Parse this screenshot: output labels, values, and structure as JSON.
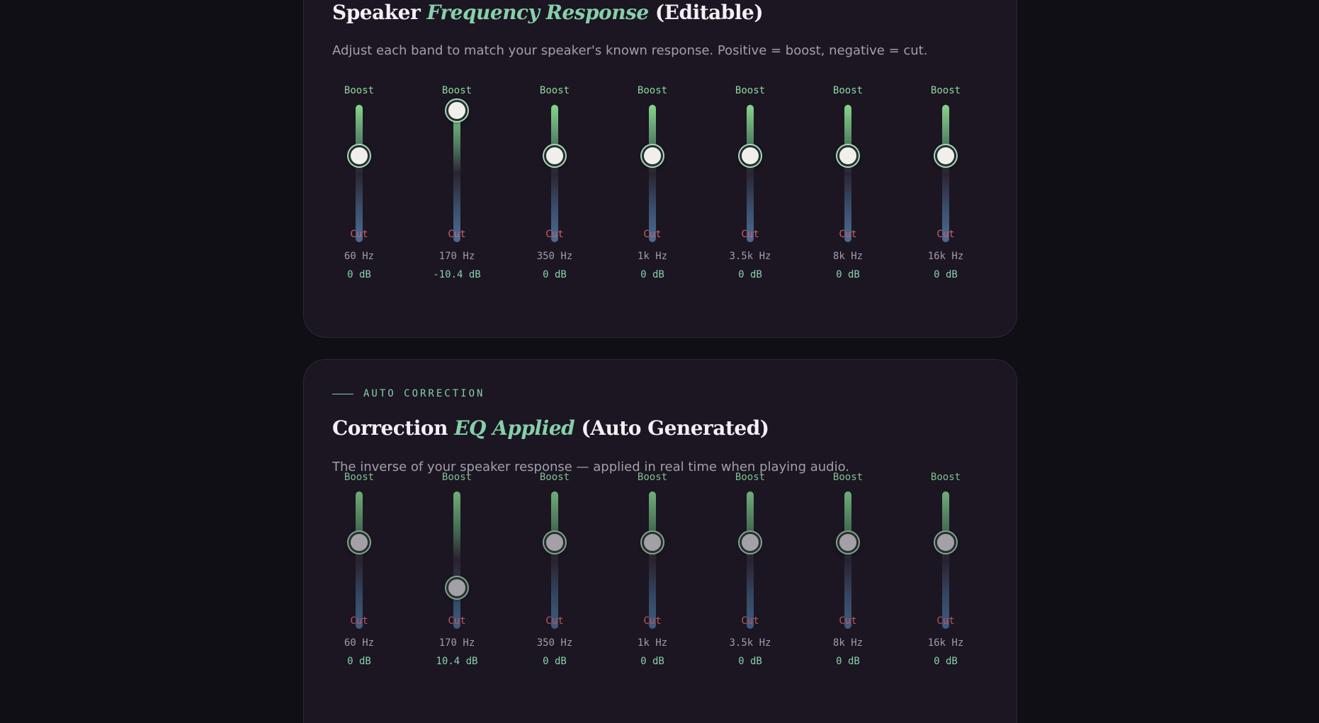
{
  "speaker": {
    "title_pre": "Speaker ",
    "title_accent": "Frequency Response",
    "title_post": " (Editable)",
    "description": "Adjust each band to match your speaker's known response. Positive = boost, negative = cut.",
    "bands": [
      {
        "boost": "Boost",
        "cut": "Cut",
        "freq": "60 Hz",
        "db_label": "0 dB",
        "gain_db": 0
      },
      {
        "boost": "Boost",
        "cut": "Cut",
        "freq": "170 Hz",
        "db_label": "-10.4 dB",
        "gain_db": -10.4
      },
      {
        "boost": "Boost",
        "cut": "Cut",
        "freq": "350 Hz",
        "db_label": "0 dB",
        "gain_db": 0
      },
      {
        "boost": "Boost",
        "cut": "Cut",
        "freq": "1k Hz",
        "db_label": "0 dB",
        "gain_db": 0
      },
      {
        "boost": "Boost",
        "cut": "Cut",
        "freq": "3.5k Hz",
        "db_label": "0 dB",
        "gain_db": 0
      },
      {
        "boost": "Boost",
        "cut": "Cut",
        "freq": "8k Hz",
        "db_label": "0 dB",
        "gain_db": 0
      },
      {
        "boost": "Boost",
        "cut": "Cut",
        "freq": "16k Hz",
        "db_label": "0 dB",
        "gain_db": 0
      }
    ]
  },
  "correction": {
    "eyebrow": "AUTO CORRECTION",
    "title_pre": "Correction ",
    "title_accent": "EQ Applied",
    "title_post": " (Auto Generated)",
    "description": "The inverse of your speaker response — applied in real time when playing audio.",
    "bands": [
      {
        "boost": "Boost",
        "cut": "Cut",
        "freq": "60 Hz",
        "db_label": "0 dB",
        "gain_db": 0
      },
      {
        "boost": "Boost",
        "cut": "Cut",
        "freq": "170 Hz",
        "db_label": "10.4 dB",
        "gain_db": 10.4
      },
      {
        "boost": "Boost",
        "cut": "Cut",
        "freq": "350 Hz",
        "db_label": "0 dB",
        "gain_db": 0
      },
      {
        "boost": "Boost",
        "cut": "Cut",
        "freq": "1k Hz",
        "db_label": "0 dB",
        "gain_db": 0
      },
      {
        "boost": "Boost",
        "cut": "Cut",
        "freq": "3.5k Hz",
        "db_label": "0 dB",
        "gain_db": 0
      },
      {
        "boost": "Boost",
        "cut": "Cut",
        "freq": "8k Hz",
        "db_label": "0 dB",
        "gain_db": 0
      },
      {
        "boost": "Boost",
        "cut": "Cut",
        "freq": "16k Hz",
        "db_label": "0 dB",
        "gain_db": 0
      }
    ]
  },
  "colors": {
    "accent": "#86cfaa",
    "boost": "#8ed6a1",
    "cut": "#d25d66",
    "background": "#110f16",
    "card": "#1b1621"
  }
}
